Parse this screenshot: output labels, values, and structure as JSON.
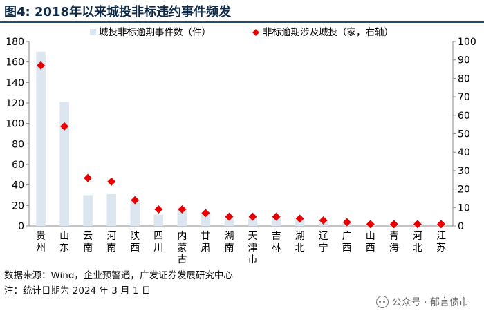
{
  "header": {
    "title": "图4:  2018年以来城投非标违约事件频发"
  },
  "chart_data": {
    "type": "bar+scatter",
    "categories": [
      "贵州",
      "山东",
      "云南",
      "河南",
      "陕西",
      "四川",
      "内蒙古",
      "甘肃",
      "湖南",
      "天津市",
      "吉林",
      "湖北",
      "辽宁",
      "广西",
      "山西",
      "青海",
      "河北",
      "江苏"
    ],
    "series": [
      {
        "name": "城投非标逾期事件数（件）",
        "type": "bar",
        "axis": "left",
        "color": "#dce6f1",
        "values": [
          170,
          121,
          30,
          31,
          26,
          11,
          18,
          13,
          7,
          7,
          7,
          6,
          4,
          3,
          1,
          1,
          1,
          1
        ]
      },
      {
        "name": "非标逾期涉及城投（家，右轴）",
        "type": "scatter",
        "marker": "diamond",
        "axis": "right",
        "color": "#e60000",
        "values": [
          87,
          54,
          26,
          24,
          14,
          9,
          9,
          7,
          5,
          5,
          5,
          4,
          3,
          2,
          1,
          1,
          1,
          1
        ]
      }
    ],
    "left_axis": {
      "min": 0,
      "max": 180,
      "step": 20,
      "ticks": [
        "0",
        "20",
        "40",
        "60",
        "80",
        "100",
        "120",
        "140",
        "160",
        "180"
      ]
    },
    "right_axis": {
      "min": 0,
      "max": 100,
      "step": 10,
      "ticks": [
        "0",
        "10",
        "20",
        "30",
        "40",
        "50",
        "60",
        "70",
        "80",
        "90",
        "100"
      ]
    },
    "grid": false,
    "legend": "top"
  },
  "footer": {
    "source": "数据来源：Wind，企业预警通，广发证券发展研究中心",
    "note": "注：统计日期为 2024 年 3 月 1 日"
  },
  "watermark": {
    "text": "公众号 · 郁言债市",
    "icon": "wechat-icon"
  }
}
